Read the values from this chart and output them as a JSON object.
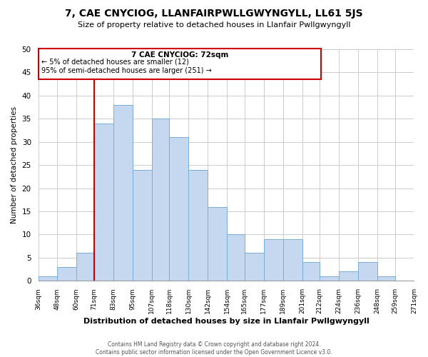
{
  "title": "7, CAE CNYCIOG, LLANFAIRPWLLGWYNGYLL, LL61 5JS",
  "subtitle": "Size of property relative to detached houses in Llanfair Pwllgwyngyll",
  "xlabel": "Distribution of detached houses by size in Llanfair Pwllgwyngyll",
  "ylabel": "Number of detached properties",
  "bin_labels": [
    "36sqm",
    "48sqm",
    "60sqm",
    "71sqm",
    "83sqm",
    "95sqm",
    "107sqm",
    "118sqm",
    "130sqm",
    "142sqm",
    "154sqm",
    "165sqm",
    "177sqm",
    "189sqm",
    "201sqm",
    "212sqm",
    "224sqm",
    "236sqm",
    "248sqm",
    "259sqm",
    "271sqm"
  ],
  "bin_edges": [
    36,
    48,
    60,
    71,
    83,
    95,
    107,
    118,
    130,
    142,
    154,
    165,
    177,
    189,
    201,
    212,
    224,
    236,
    248,
    259,
    271
  ],
  "bar_heights": [
    1,
    3,
    6,
    34,
    38,
    24,
    35,
    31,
    24,
    16,
    10,
    6,
    9,
    9,
    4,
    1,
    2,
    4,
    1,
    0
  ],
  "bar_color": "#c5d8f0",
  "bar_edge_color": "#7aadd4",
  "red_line_x": 71,
  "ylim": [
    0,
    50
  ],
  "yticks": [
    0,
    5,
    10,
    15,
    20,
    25,
    30,
    35,
    40,
    45,
    50
  ],
  "annotation_title": "7 CAE CNYCIOG: 72sqm",
  "annotation_line1": "← 5% of detached houses are smaller (12)",
  "annotation_line2": "95% of semi-detached houses are larger (251) →",
  "annotation_box_color": "#cc0000",
  "footer_line1": "Contains HM Land Registry data © Crown copyright and database right 2024.",
  "footer_line2": "Contains public sector information licensed under the Open Government Licence v3.0.",
  "background_color": "#ffffff",
  "grid_color": "#cccccc"
}
